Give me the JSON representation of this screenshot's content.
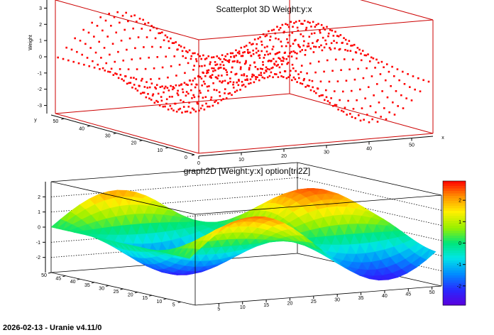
{
  "footer": "2026-02-13 - Uranie v4.11/0",
  "chart_data": [
    {
      "type": "scatter",
      "subtype": "scatter3d",
      "title": "Scatterplot 3D Weight:y:x",
      "xlabel": "x",
      "ylabel": "y",
      "zlabel": "Weight",
      "xlim": [
        0,
        55
      ],
      "ylim": [
        0,
        55
      ],
      "zlim": [
        -3.5,
        3.5
      ],
      "x_ticks": [
        "0",
        "10",
        "20",
        "30",
        "40",
        "50"
      ],
      "y_ticks": [
        "0",
        "10",
        "20",
        "30",
        "40",
        "50"
      ],
      "z_ticks": [
        "-3",
        "-2",
        "-1",
        "0",
        "1",
        "2",
        "3"
      ],
      "marker_color": "#ff0000",
      "frame_color": "#cc0000",
      "grid": false,
      "surface": "Weight = 2.5 sin(2πx/55) cos(2πy/55) sampled on a 2×2 grid over x,y ∈ [0,55]"
    },
    {
      "type": "area",
      "subtype": "surface3d-tri2z",
      "title": "graph2D [Weight:y:x] option[tri2Z]",
      "xlim": [
        0,
        52
      ],
      "ylim": [
        0,
        50
      ],
      "zlim": [
        -3,
        3
      ],
      "x_ticks": [
        "5",
        "10",
        "15",
        "20",
        "25",
        "30",
        "35",
        "40",
        "45",
        "50"
      ],
      "y_ticks": [
        "5",
        "10",
        "15",
        "20",
        "25",
        "30",
        "35",
        "40",
        "45",
        "50"
      ],
      "z_ticks": [
        "-2",
        "-1",
        "0",
        "1",
        "2"
      ],
      "colorbar_ticks": [
        "-2",
        "-1",
        "0",
        "1",
        "2"
      ],
      "colorbar_range": [
        -2.9,
        2.9
      ],
      "grid": true,
      "frame_color": "#000000"
    }
  ]
}
